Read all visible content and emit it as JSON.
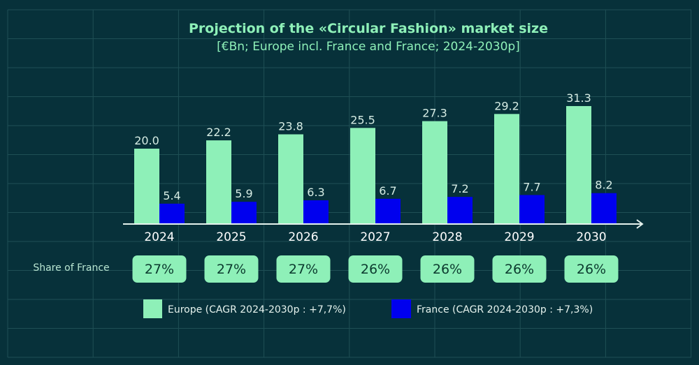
{
  "chart_data": {
    "type": "bar",
    "title": "Projection of the «Circular Fashion» market size",
    "subtitle": "[€Bn; Europe incl. France and France; 2024-2030p]",
    "categories": [
      "2024",
      "2025",
      "2026",
      "2027",
      "2028",
      "2029",
      "2030"
    ],
    "series": [
      {
        "name": "Europe (CAGR 2024-2030p : +7,7%)",
        "color": "#8ef0b8",
        "values": [
          20.0,
          22.2,
          23.8,
          25.5,
          27.3,
          29.2,
          31.3
        ],
        "labels": [
          "20.0",
          "22.2",
          "23.8",
          "25.5",
          "27.3",
          "29.2",
          "31.3"
        ]
      },
      {
        "name": "France (CAGR 2024-2030p : +7,3%)",
        "color": "#0000ee",
        "values": [
          5.4,
          5.9,
          6.3,
          6.7,
          7.2,
          7.7,
          8.2
        ],
        "labels": [
          "5.4",
          "5.9",
          "6.3",
          "6.7",
          "7.2",
          "7.7",
          "8.2"
        ]
      }
    ],
    "share_row": {
      "label": "Share of France",
      "values": [
        "27%",
        "27%",
        "27%",
        "26%",
        "26%",
        "26%",
        "26%"
      ]
    },
    "xlabel": "",
    "ylabel": "",
    "ylim": [
      0,
      32
    ],
    "grid": true,
    "legend": "bottom"
  },
  "colors": {
    "background": "#07313a",
    "grid": "#1f4f55",
    "accent": "#8ef0b8"
  }
}
